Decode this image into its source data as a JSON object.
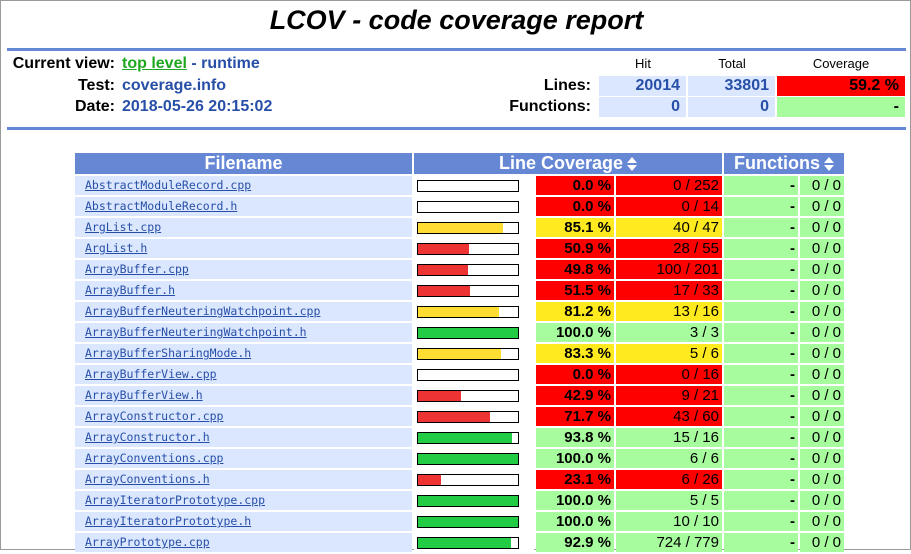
{
  "title": "LCOV - code coverage report",
  "header": {
    "current_view_label": "Current view:",
    "current_view_link": "top level",
    "current_view_rest": " - runtime",
    "test_label": "Test:",
    "test_value": "coverage.info",
    "date_label": "Date:",
    "date_value": "2018-05-26 20:15:02",
    "col_hit": "Hit",
    "col_total": "Total",
    "col_coverage": "Coverage",
    "lines_label": "Lines:",
    "lines_hit": "20014",
    "lines_total": "33801",
    "lines_coverage": "59.2 %",
    "functions_label": "Functions:",
    "functions_hit": "0",
    "functions_total": "0",
    "functions_coverage": "-"
  },
  "table": {
    "col_filename": "Filename",
    "col_line_coverage": "Line Coverage",
    "col_functions": "Functions",
    "rows": [
      {
        "file": "AbstractModuleRecord.cpp",
        "pct": "0.0 %",
        "cnt": "0 / 252",
        "fill": 0.0,
        "level": "lo",
        "fpct": "-",
        "fcnt": "0 / 0"
      },
      {
        "file": "AbstractModuleRecord.h",
        "pct": "0.0 %",
        "cnt": "0 / 14",
        "fill": 0.0,
        "level": "lo",
        "fpct": "-",
        "fcnt": "0 / 0"
      },
      {
        "file": "ArgList.cpp",
        "pct": "85.1 %",
        "cnt": "40 / 47",
        "fill": 0.851,
        "level": "med",
        "fpct": "-",
        "fcnt": "0 / 0"
      },
      {
        "file": "ArgList.h",
        "pct": "50.9 %",
        "cnt": "28 / 55",
        "fill": 0.509,
        "level": "lo",
        "fpct": "-",
        "fcnt": "0 / 0"
      },
      {
        "file": "ArrayBuffer.cpp",
        "pct": "49.8 %",
        "cnt": "100 / 201",
        "fill": 0.498,
        "level": "lo",
        "fpct": "-",
        "fcnt": "0 / 0"
      },
      {
        "file": "ArrayBuffer.h",
        "pct": "51.5 %",
        "cnt": "17 / 33",
        "fill": 0.515,
        "level": "lo",
        "fpct": "-",
        "fcnt": "0 / 0"
      },
      {
        "file": "ArrayBufferNeuteringWatchpoint.cpp",
        "pct": "81.2 %",
        "cnt": "13 / 16",
        "fill": 0.812,
        "level": "med",
        "fpct": "-",
        "fcnt": "0 / 0"
      },
      {
        "file": "ArrayBufferNeuteringWatchpoint.h",
        "pct": "100.0 %",
        "cnt": "3 / 3",
        "fill": 1.0,
        "level": "hi",
        "fpct": "-",
        "fcnt": "0 / 0"
      },
      {
        "file": "ArrayBufferSharingMode.h",
        "pct": "83.3 %",
        "cnt": "5 / 6",
        "fill": 0.833,
        "level": "med",
        "fpct": "-",
        "fcnt": "0 / 0"
      },
      {
        "file": "ArrayBufferView.cpp",
        "pct": "0.0 %",
        "cnt": "0 / 16",
        "fill": 0.0,
        "level": "lo",
        "fpct": "-",
        "fcnt": "0 / 0"
      },
      {
        "file": "ArrayBufferView.h",
        "pct": "42.9 %",
        "cnt": "9 / 21",
        "fill": 0.429,
        "level": "lo",
        "fpct": "-",
        "fcnt": "0 / 0"
      },
      {
        "file": "ArrayConstructor.cpp",
        "pct": "71.7 %",
        "cnt": "43 / 60",
        "fill": 0.717,
        "level": "lo",
        "fpct": "-",
        "fcnt": "0 / 0"
      },
      {
        "file": "ArrayConstructor.h",
        "pct": "93.8 %",
        "cnt": "15 / 16",
        "fill": 0.938,
        "level": "hi",
        "fpct": "-",
        "fcnt": "0 / 0"
      },
      {
        "file": "ArrayConventions.cpp",
        "pct": "100.0 %",
        "cnt": "6 / 6",
        "fill": 1.0,
        "level": "hi",
        "fpct": "-",
        "fcnt": "0 / 0"
      },
      {
        "file": "ArrayConventions.h",
        "pct": "23.1 %",
        "cnt": "6 / 26",
        "fill": 0.231,
        "level": "lo",
        "fpct": "-",
        "fcnt": "0 / 0"
      },
      {
        "file": "ArrayIteratorPrototype.cpp",
        "pct": "100.0 %",
        "cnt": "5 / 5",
        "fill": 1.0,
        "level": "hi",
        "fpct": "-",
        "fcnt": "0 / 0"
      },
      {
        "file": "ArrayIteratorPrototype.h",
        "pct": "100.0 %",
        "cnt": "10 / 10",
        "fill": 1.0,
        "level": "hi",
        "fpct": "-",
        "fcnt": "0 / 0"
      },
      {
        "file": "ArrayPrototype.cpp",
        "pct": "92.9 %",
        "cnt": "724 / 779",
        "fill": 0.929,
        "level": "hi",
        "fpct": "-",
        "fcnt": "0 / 0"
      }
    ]
  },
  "colors": {
    "lo_bg": "#ff0000",
    "lo_bar": "#ee3333",
    "med_bg": "#ffea20",
    "med_bar": "#ffdd33",
    "hi_bg": "#a7fc9d",
    "hi_bar": "#22cc44",
    "header_blue": "#6688d4"
  }
}
